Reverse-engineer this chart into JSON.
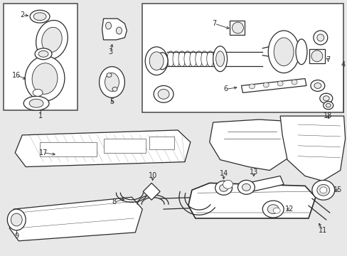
{
  "figsize": [
    4.89,
    3.6
  ],
  "dpi": 100,
  "bg_color": "#e8e8e8",
  "line_color": "#2a2a2a",
  "white": "#ffffff",
  "gray_light": "#d0d0d0",
  "gray_med": "#b0b0b0"
}
